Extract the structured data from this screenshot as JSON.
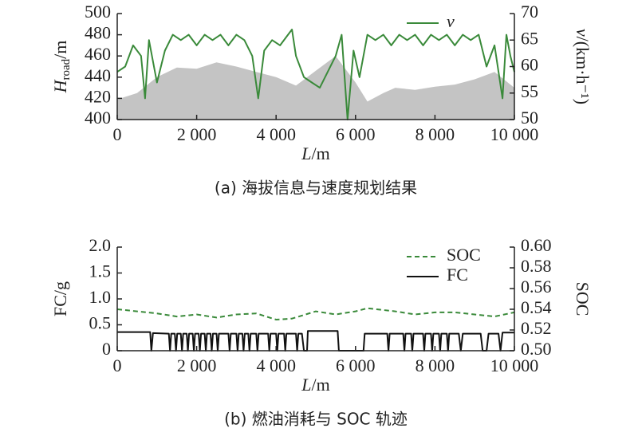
{
  "chart_data": [
    {
      "type": "line",
      "caption": "(a) 海拔信息与速度规划结果",
      "xlabel": {
        "text": "L",
        "unit": "/m"
      },
      "ylabel": {
        "text": "H",
        "sub": "road",
        "unit": "/m"
      },
      "y2label": {
        "text": "v",
        "unit": "/(km·h⁻¹)"
      },
      "xlim": [
        0,
        10000
      ],
      "ylim": [
        400,
        500
      ],
      "y2lim": [
        50,
        70
      ],
      "xticks": [
        0,
        {
          "value": 2000,
          "label": "2 000"
        },
        {
          "value": 4000,
          "label": "4 000"
        },
        {
          "value": 6000,
          "label": "6 000"
        },
        {
          "value": 8000,
          "label": "8 000"
        },
        {
          "value": 10000,
          "label": "10 000"
        }
      ],
      "yticks": [
        400,
        420,
        440,
        460,
        480,
        500
      ],
      "y2ticks": [
        50,
        55,
        60,
        65,
        70
      ],
      "legend": "upper right",
      "series": [
        {
          "color": "#c4c4c4",
          "fill": true,
          "x": [
            0,
            500,
            1000,
            1500,
            2000,
            2500,
            3000,
            3500,
            4000,
            4500,
            5000,
            5500,
            6000,
            6300,
            6700,
            7000,
            7500,
            8000,
            8500,
            9000,
            9500,
            10000
          ],
          "values": [
            419,
            425,
            440,
            449,
            448,
            454,
            450,
            445,
            440,
            432,
            446,
            460,
            435,
            417,
            425,
            430,
            428,
            431,
            433,
            438,
            445,
            430
          ]
        },
        {
          "name": "v",
          "color": "#3a8a3a",
          "axis": "y2",
          "x": [
            0,
            200,
            400,
            600,
            700,
            800,
            1000,
            1200,
            1400,
            1600,
            1800,
            2000,
            2200,
            2400,
            2600,
            2800,
            3000,
            3200,
            3400,
            3550,
            3700,
            3900,
            4100,
            4300,
            4400,
            4500,
            4700,
            4900,
            5100,
            5300,
            5500,
            5650,
            5800,
            5950,
            6100,
            6300,
            6500,
            6700,
            6900,
            7100,
            7300,
            7500,
            7700,
            7900,
            8100,
            8300,
            8500,
            8700,
            8900,
            9100,
            9300,
            9500,
            9700,
            9800,
            9900,
            10000
          ],
          "values": [
            59,
            60,
            64,
            62,
            54,
            65,
            57,
            63,
            66,
            65,
            66,
            64,
            66,
            65,
            66,
            64,
            66,
            65,
            62,
            54,
            63,
            65,
            64,
            66,
            67,
            62,
            58,
            57,
            56,
            59,
            62,
            66,
            50,
            63,
            58,
            66,
            65,
            66,
            64,
            66,
            65,
            66,
            64,
            66,
            65,
            66,
            64,
            66,
            65,
            66,
            60,
            64,
            54,
            66,
            62,
            59
          ]
        }
      ]
    },
    {
      "type": "line",
      "caption": "(b) 燃油消耗与 SOC 轨迹",
      "xlabel": {
        "text": "L",
        "unit": "/m"
      },
      "ylabel": "FC/g",
      "y2label": "SOC",
      "xlim": [
        0,
        10000
      ],
      "ylim": [
        0,
        2
      ],
      "y2lim": [
        0.5,
        0.6
      ],
      "xticks": [
        0,
        {
          "value": 2000,
          "label": "2 000"
        },
        {
          "value": 4000,
          "label": "4 000"
        },
        {
          "value": 6000,
          "label": "6 000"
        },
        {
          "value": 8000,
          "label": "8 000"
        },
        {
          "value": 10000,
          "label": "10 000"
        }
      ],
      "yticks": [
        0,
        0.5,
        {
          "value": 1,
          "label": "1.0"
        },
        1.5,
        {
          "value": 2,
          "label": "2.0"
        }
      ],
      "y2ticks": [
        {
          "value": 0.5,
          "label": "0.50"
        },
        0.52,
        0.54,
        0.56,
        0.58,
        {
          "value": 0.6,
          "label": "0.60"
        }
      ],
      "legend": "upper right",
      "series": [
        {
          "name": "SOC",
          "color": "#3a8a3a",
          "axis": "y2",
          "dash": true,
          "x": [
            0,
            500,
            1000,
            1500,
            2000,
            2500,
            3000,
            3500,
            4000,
            4400,
            5000,
            5500,
            6000,
            6300,
            7000,
            7500,
            8000,
            8500,
            9000,
            9500,
            10000
          ],
          "values": [
            0.54,
            0.538,
            0.536,
            0.533,
            0.535,
            0.532,
            0.535,
            0.536,
            0.53,
            0.531,
            0.538,
            0.535,
            0.538,
            0.541,
            0.538,
            0.535,
            0.537,
            0.537,
            0.535,
            0.533,
            0.537
          ]
        },
        {
          "name": "FC",
          "color": "#111111",
          "x": [
            0,
            830,
            860,
            900,
            1300,
            1330,
            1360,
            1450,
            1480,
            1510,
            1600,
            1630,
            1660,
            1750,
            1780,
            1810,
            1900,
            1930,
            1960,
            2050,
            2080,
            2110,
            2200,
            2230,
            2260,
            2350,
            2380,
            2410,
            2500,
            2530,
            2560,
            2800,
            2830,
            2860,
            3000,
            3030,
            3060,
            3150,
            3180,
            3210,
            3300,
            3330,
            3360,
            3500,
            3530,
            3560,
            3800,
            3830,
            3860,
            4000,
            4030,
            4060,
            4200,
            4230,
            4260,
            4500,
            4530,
            4560,
            4650,
            4700,
            4780,
            4800,
            5550,
            5580,
            6200,
            6230,
            6800,
            6830,
            6860,
            7200,
            7230,
            7260,
            7400,
            7430,
            7460,
            7700,
            7730,
            7760,
            7900,
            7930,
            7960,
            8100,
            8130,
            8160,
            8300,
            8330,
            8360,
            8600,
            8650,
            8700,
            9150,
            9200,
            9300,
            9350,
            9600,
            9650,
            9700,
            10000
          ],
          "values": [
            0.36,
            0.36,
            0,
            0.34,
            0.33,
            0,
            0.33,
            0.33,
            0,
            0.33,
            0.33,
            0,
            0.33,
            0.33,
            0,
            0.33,
            0.33,
            0,
            0.33,
            0.33,
            0,
            0.33,
            0.33,
            0,
            0.33,
            0.33,
            0,
            0.33,
            0.33,
            0,
            0.33,
            0.33,
            0,
            0.33,
            0.33,
            0,
            0.33,
            0.33,
            0,
            0.33,
            0.33,
            0,
            0.33,
            0.33,
            0,
            0.33,
            0.33,
            0,
            0.33,
            0.33,
            0,
            0.33,
            0.33,
            0,
            0.33,
            0.33,
            0,
            0.33,
            0.33,
            0,
            0,
            0.38,
            0.38,
            0,
            0,
            0.33,
            0.33,
            0,
            0.33,
            0.33,
            0,
            0.33,
            0.33,
            0,
            0.33,
            0.33,
            0,
            0.33,
            0.33,
            0,
            0.33,
            0.33,
            0,
            0.33,
            0.33,
            0,
            0.33,
            0.33,
            0,
            0.33,
            0.33,
            0,
            0,
            0.33,
            0.33,
            0,
            0.35,
            0.35
          ]
        }
      ]
    }
  ]
}
